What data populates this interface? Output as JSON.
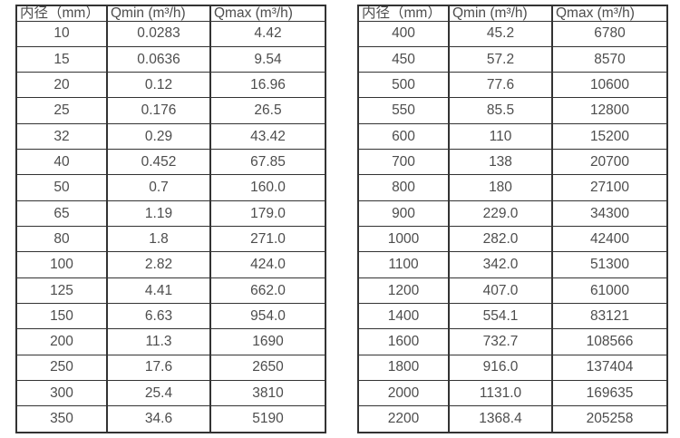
{
  "page": {
    "background_color": "#ffffff",
    "border_color": "#333333",
    "text_color": "#4d4d4d"
  },
  "tables": [
    {
      "name": "flow-table-small-diameters",
      "headers": [
        "内径（mm）",
        "Qmin (m³/h)",
        "Qmax (m³/h)"
      ],
      "rows": [
        [
          "10",
          "0.0283",
          "4.42"
        ],
        [
          "15",
          "0.0636",
          "9.54"
        ],
        [
          "20",
          "0.12",
          "16.96"
        ],
        [
          "25",
          "0.176",
          "26.5"
        ],
        [
          "32",
          "0.29",
          "43.42"
        ],
        [
          "40",
          "0.452",
          "67.85"
        ],
        [
          "50",
          "0.7",
          "160.0"
        ],
        [
          "65",
          "1.19",
          "179.0"
        ],
        [
          "80",
          "1.8",
          "271.0"
        ],
        [
          "100",
          "2.82",
          "424.0"
        ],
        [
          "125",
          "4.41",
          "662.0"
        ],
        [
          "150",
          "6.63",
          "954.0"
        ],
        [
          "200",
          "11.3",
          "1690"
        ],
        [
          "250",
          "17.6",
          "2650"
        ],
        [
          "300",
          "25.4",
          "3810"
        ],
        [
          "350",
          "34.6",
          "5190"
        ]
      ]
    },
    {
      "name": "flow-table-large-diameters",
      "headers": [
        "内径（mm）",
        "Qmin (m³/h)",
        "Qmax (m³/h)"
      ],
      "rows": [
        [
          "400",
          "45.2",
          "6780"
        ],
        [
          "450",
          "57.2",
          "8570"
        ],
        [
          "500",
          "77.6",
          "10600"
        ],
        [
          "550",
          "85.5",
          "12800"
        ],
        [
          "600",
          "110",
          "15200"
        ],
        [
          "700",
          "138",
          "20700"
        ],
        [
          "800",
          "180",
          "27100"
        ],
        [
          "900",
          "229.0",
          "34300"
        ],
        [
          "1000",
          "282.0",
          "42400"
        ],
        [
          "1100",
          "342.0",
          "51300"
        ],
        [
          "1200",
          "407.0",
          "61000"
        ],
        [
          "1400",
          "554.1",
          "83121"
        ],
        [
          "1600",
          "732.7",
          "108566"
        ],
        [
          "1800",
          "916.0",
          "137404"
        ],
        [
          "2000",
          "1131.0",
          "169635"
        ],
        [
          "2200",
          "1368.4",
          "205258"
        ]
      ]
    }
  ]
}
